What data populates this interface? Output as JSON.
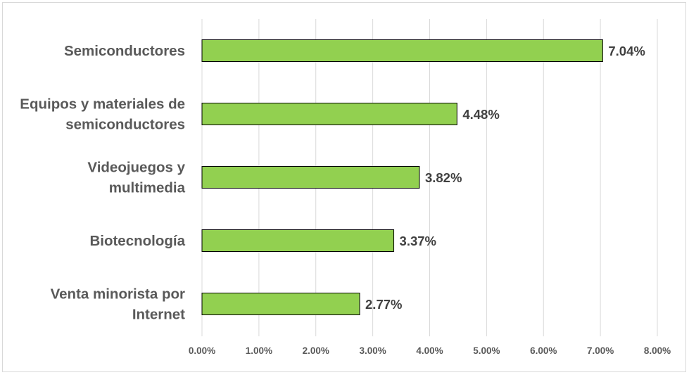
{
  "chart_data": {
    "type": "bar",
    "orientation": "horizontal",
    "categories": [
      "Semiconductores",
      "Equipos y materiales de semiconductores",
      "Videojuegos y multimedia",
      "Biotecnología",
      "Venta minorista por Internet"
    ],
    "category_lines": [
      [
        "Semiconductores"
      ],
      [
        "Equipos y materiales de",
        "semiconductores"
      ],
      [
        "Videojuegos y",
        "multimedia"
      ],
      [
        "Biotecnología"
      ],
      [
        "Venta minorista por",
        "Internet"
      ]
    ],
    "values": [
      7.04,
      4.48,
      3.82,
      3.37,
      2.77
    ],
    "value_labels": [
      "7.04%",
      "4.48%",
      "3.82%",
      "3.37%",
      "2.77%"
    ],
    "xlim": [
      0,
      8
    ],
    "x_ticks": [
      "0.00%",
      "1.00%",
      "2.00%",
      "3.00%",
      "4.00%",
      "5.00%",
      "6.00%",
      "7.00%",
      "8.00%"
    ],
    "grid": "vertical",
    "legend": "none",
    "colors": {
      "bar": "#92d050",
      "bar_border": "#000000",
      "grid": "#d9d9d9"
    }
  }
}
